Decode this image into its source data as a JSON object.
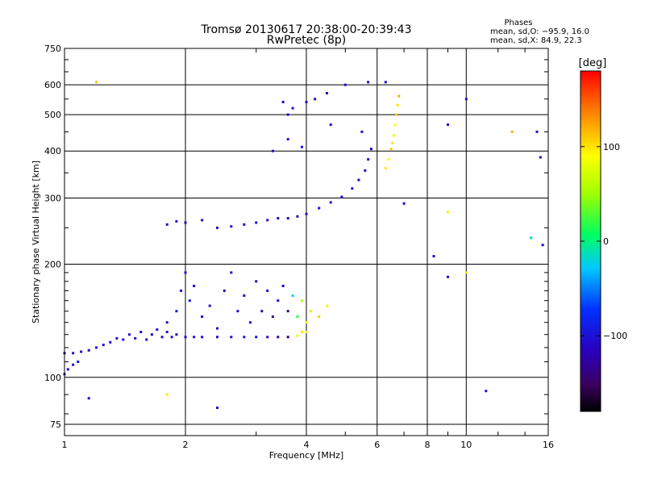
{
  "chart_data": {
    "type": "scatter",
    "title": "Tromsø 20130617 20:38:00-20:39:43",
    "subtitle": "RwPretec (8p)",
    "xlabel": "Frequency [MHz]",
    "ylabel": "Stationary phase Virtual Height [km]",
    "x_scale": "log",
    "y_scale": "log",
    "xlim": [
      1,
      16
    ],
    "ylim": [
      70,
      750
    ],
    "x_ticks": [
      "1",
      "2",
      "4",
      "6",
      "8",
      "10",
      "16"
    ],
    "x_tick_values": [
      1,
      2,
      4,
      6,
      8,
      10,
      16
    ],
    "y_ticks": [
      "75",
      "100",
      "200",
      "300",
      "400",
      "500",
      "600",
      "750"
    ],
    "y_tick_values": [
      75,
      100,
      200,
      300,
      400,
      500,
      600,
      750
    ],
    "grid": true,
    "phases": {
      "heading": "Phases",
      "o_line": "mean, sd,O: −95.9, 16.0",
      "x_line": "mean, sd,X:  84.9, 22.3"
    },
    "colorbar": {
      "label": "[deg]",
      "ticks": [
        "100",
        "0",
        "−100"
      ],
      "tick_values": [
        100,
        0,
        -100
      ],
      "range": [
        -180,
        180
      ]
    },
    "series": [
      {
        "role": "E/F1 lower trace",
        "points": [
          [
            1.0,
            102,
            -110
          ],
          [
            1.02,
            105,
            -105
          ],
          [
            1.05,
            108,
            -108
          ],
          [
            1.08,
            110,
            -100
          ],
          [
            1.0,
            116,
            -110
          ],
          [
            1.05,
            116,
            -105
          ],
          [
            1.1,
            117,
            -110
          ],
          [
            1.15,
            118,
            -105
          ],
          [
            1.2,
            120,
            -100
          ],
          [
            1.25,
            122,
            -105
          ],
          [
            1.3,
            124,
            -110
          ],
          [
            1.35,
            127,
            -100
          ],
          [
            1.4,
            126,
            -105
          ],
          [
            1.45,
            130,
            -110
          ],
          [
            1.5,
            127,
            -100
          ],
          [
            1.55,
            132,
            -105
          ],
          [
            1.6,
            126,
            -110
          ],
          [
            1.65,
            130,
            -100
          ],
          [
            1.7,
            134,
            -105
          ],
          [
            1.75,
            128,
            -110
          ],
          [
            1.8,
            132,
            -100
          ],
          [
            1.85,
            128,
            -105
          ],
          [
            1.9,
            130,
            -110
          ],
          [
            2.0,
            128,
            -105
          ],
          [
            2.1,
            128,
            -100
          ],
          [
            2.2,
            128,
            -105
          ],
          [
            2.4,
            128,
            -110
          ],
          [
            2.6,
            128,
            -100
          ],
          [
            2.8,
            128,
            -95
          ],
          [
            3.0,
            128,
            -100
          ],
          [
            3.2,
            128,
            -120
          ],
          [
            3.4,
            128,
            -130
          ],
          [
            3.6,
            128,
            -140
          ],
          [
            3.8,
            129,
            80
          ],
          [
            3.9,
            132,
            100
          ],
          [
            4.0,
            132,
            90
          ]
        ]
      },
      {
        "role": "F1 cloud",
        "points": [
          [
            1.8,
            140,
            -105
          ],
          [
            1.9,
            150,
            -100
          ],
          [
            1.95,
            170,
            -110
          ],
          [
            2.0,
            190,
            -105
          ],
          [
            2.05,
            160,
            -100
          ],
          [
            2.1,
            175,
            -110
          ],
          [
            2.2,
            145,
            -105
          ],
          [
            2.3,
            155,
            -100
          ],
          [
            2.4,
            135,
            -105
          ],
          [
            2.5,
            170,
            -110
          ],
          [
            2.6,
            190,
            -100
          ],
          [
            2.7,
            150,
            -105
          ],
          [
            2.8,
            165,
            -110
          ],
          [
            2.9,
            140,
            -100
          ],
          [
            3.0,
            180,
            -120
          ],
          [
            3.1,
            150,
            -130
          ],
          [
            3.2,
            170,
            -125
          ],
          [
            3.3,
            145,
            -135
          ],
          [
            3.4,
            160,
            -120
          ],
          [
            3.5,
            175,
            -110
          ],
          [
            3.6,
            150,
            -140
          ],
          [
            3.7,
            165,
            -20
          ],
          [
            3.8,
            145,
            20
          ],
          [
            3.9,
            160,
            60
          ],
          [
            4.0,
            140,
            90
          ],
          [
            4.1,
            150,
            100
          ],
          [
            4.3,
            145,
            110
          ],
          [
            4.5,
            155,
            80
          ]
        ]
      },
      {
        "role": "F2 trace",
        "points": [
          [
            1.8,
            255,
            -105
          ],
          [
            1.9,
            260,
            -100
          ],
          [
            2.0,
            258,
            -110
          ],
          [
            2.2,
            262,
            -105
          ],
          [
            2.4,
            250,
            -100
          ],
          [
            2.6,
            252,
            -105
          ],
          [
            2.8,
            255,
            -110
          ],
          [
            3.0,
            258,
            -100
          ],
          [
            3.2,
            262,
            -110
          ],
          [
            3.4,
            265,
            -120
          ],
          [
            3.6,
            265,
            -125
          ],
          [
            3.8,
            268,
            -120
          ],
          [
            4.0,
            272,
            -110
          ],
          [
            4.3,
            282,
            -105
          ],
          [
            4.6,
            292,
            -100
          ],
          [
            4.9,
            302,
            -105
          ],
          [
            5.2,
            318,
            -100
          ],
          [
            5.4,
            335,
            -110
          ],
          [
            5.6,
            355,
            -105
          ],
          [
            5.7,
            380,
            -100
          ],
          [
            5.8,
            405,
            -110
          ]
        ]
      },
      {
        "role": "F2 X-mode branch",
        "points": [
          [
            6.3,
            360,
            100
          ],
          [
            6.4,
            380,
            90
          ],
          [
            6.5,
            405,
            110
          ],
          [
            6.55,
            420,
            100
          ],
          [
            6.6,
            440,
            80
          ],
          [
            6.65,
            470,
            90
          ],
          [
            6.7,
            500,
            110
          ],
          [
            6.75,
            530,
            100
          ],
          [
            6.8,
            560,
            120
          ]
        ]
      },
      {
        "role": "scattered echoes",
        "points": [
          [
            3.5,
            540,
            -110
          ],
          [
            3.6,
            500,
            -105
          ],
          [
            3.7,
            520,
            -100
          ],
          [
            4.0,
            540,
            -110
          ],
          [
            4.2,
            550,
            -105
          ],
          [
            4.5,
            570,
            -100
          ],
          [
            5.0,
            600,
            -110
          ],
          [
            5.7,
            610,
            -105
          ],
          [
            6.3,
            610,
            -100
          ],
          [
            3.3,
            400,
            -110
          ],
          [
            3.6,
            430,
            -105
          ],
          [
            3.9,
            410,
            -100
          ],
          [
            4.6,
            470,
            -110
          ],
          [
            5.5,
            450,
            -105
          ],
          [
            1.2,
            610,
            110
          ],
          [
            9.0,
            470,
            -105
          ],
          [
            10.0,
            550,
            -110
          ],
          [
            11.2,
            92,
            -100
          ],
          [
            1.15,
            88,
            -105
          ],
          [
            2.4,
            83,
            -110
          ],
          [
            1.8,
            90,
            100
          ],
          [
            8.3,
            210,
            -120
          ],
          [
            9.0,
            275,
            100
          ],
          [
            15.0,
            450,
            -100
          ],
          [
            15.3,
            385,
            -105
          ],
          [
            15.5,
            225,
            -110
          ],
          [
            13.0,
            450,
            120
          ],
          [
            14.5,
            235,
            -20
          ],
          [
            7.0,
            290,
            -100
          ],
          [
            10.0,
            190,
            100
          ],
          [
            9.0,
            185,
            -100
          ]
        ]
      }
    ]
  }
}
